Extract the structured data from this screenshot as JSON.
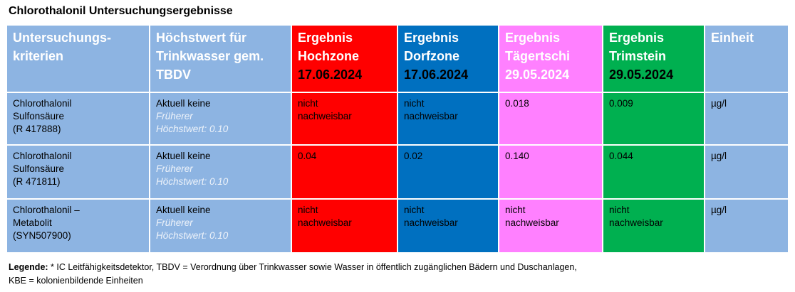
{
  "header": {
    "title": "Chlorothalonil Untersuchungsergebnisse"
  },
  "table": {
    "columns": [
      {
        "lines": [
          "Untersuchungs-",
          "kriterien"
        ],
        "bg": "#8db4e2",
        "color": "#ffffff"
      },
      {
        "lines": [
          "Höchstwert für",
          "Trinkwasser gem.",
          "TBDV"
        ],
        "bg": "#8db4e2",
        "color": "#ffffff"
      },
      {
        "lines": [
          "Ergebnis",
          "Hochzone",
          "17.06.2024"
        ],
        "bg": "#ff0000",
        "color": "#ffffff",
        "date_color": "#000000"
      },
      {
        "lines": [
          "Ergebnis",
          "Dorfzone",
          "17.06.2024"
        ],
        "bg": "#0070c0",
        "color": "#ffffff",
        "date_color": "#000000"
      },
      {
        "lines": [
          "Ergebnis",
          "Tägertschi",
          "29.05.2024"
        ],
        "bg": "#ff80ff",
        "color": "#ffffff",
        "date_color": "#ffffff"
      },
      {
        "lines": [
          "Ergebnis",
          "Trimstein",
          "29.05.2024"
        ],
        "bg": "#00b050",
        "color": "#ffffff",
        "date_color": "#000000"
      },
      {
        "lines": [
          "Einheit"
        ],
        "bg": "#8db4e2",
        "color": "#ffffff"
      }
    ],
    "rows": [
      {
        "criterion": [
          "Chlorothalonil",
          "Sulfonsäure",
          "(R 417888)"
        ],
        "limit": {
          "current": "Aktuell keine",
          "previous": [
            "Früherer",
            "Höchstwert: 0.10"
          ]
        },
        "results": [
          "nicht nachweisbar",
          "nicht nachweisbar",
          "0.018",
          "0.009"
        ],
        "unit": "µg/l"
      },
      {
        "criterion": [
          "Chlorothalonil",
          "Sulfonsäure",
          "(R 471811)"
        ],
        "limit": {
          "current": "Aktuell keine",
          "previous": [
            "Früherer",
            "Höchstwert: 0.10"
          ]
        },
        "results": [
          "0.04",
          "0.02",
          "0.140",
          "0.044"
        ],
        "unit": "µg/l"
      },
      {
        "criterion": [
          "Chlorothalonil –",
          "Metabolit",
          "(SYN507900)"
        ],
        "limit": {
          "current": "Aktuell keine",
          "previous": [
            "Früherer",
            "Höchstwert: 0.10"
          ]
        },
        "results": [
          "nicht nachweisbar",
          "nicht nachweisbar",
          "nicht nachweisbar",
          "nicht nachweisbar"
        ],
        "unit": "µg/l"
      }
    ]
  },
  "legend": {
    "label": "Legende:",
    "lines": [
      "* IC Leitfähigkeitsdetektor, TBDV = Verordnung über Trinkwasser sowie Wasser in öffentlich zugänglichen Bädern und Duschanlagen,",
      "KBE = kolonienbildende Einheiten"
    ]
  }
}
